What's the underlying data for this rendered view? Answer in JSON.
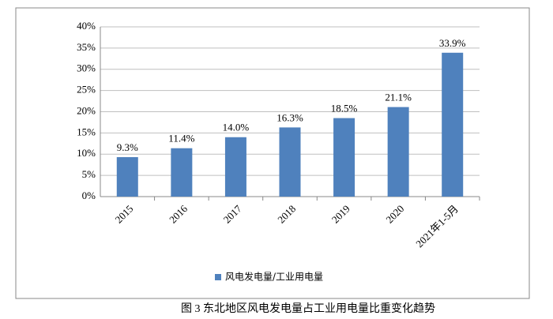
{
  "chart_data": {
    "type": "bar",
    "title": "图 3  东北地区风电发电量占工业用电量比重变化趋势",
    "categories": [
      "2015",
      "2016",
      "2017",
      "2018",
      "2019",
      "2020",
      "2021年1-5月"
    ],
    "series": [
      {
        "name": "风电发电量/工业用电量",
        "color": "#4f81bd",
        "values": [
          9.3,
          11.4,
          14.0,
          16.3,
          18.5,
          21.1,
          33.9
        ],
        "value_labels": [
          "9.3%",
          "11.4%",
          "14.0%",
          "16.3%",
          "18.5%",
          "21.1%",
          "33.9%"
        ]
      }
    ],
    "ylim": [
      0,
      40
    ],
    "yticks": [
      {
        "value": 0,
        "label": "0%"
      },
      {
        "value": 5,
        "label": "5%"
      },
      {
        "value": 10,
        "label": "10%"
      },
      {
        "value": 15,
        "label": "15%"
      },
      {
        "value": 20,
        "label": "20%"
      },
      {
        "value": 25,
        "label": "25%"
      },
      {
        "value": 30,
        "label": "30%"
      },
      {
        "value": 35,
        "label": "35%"
      },
      {
        "value": 40,
        "label": "40%"
      }
    ],
    "grid": true
  }
}
